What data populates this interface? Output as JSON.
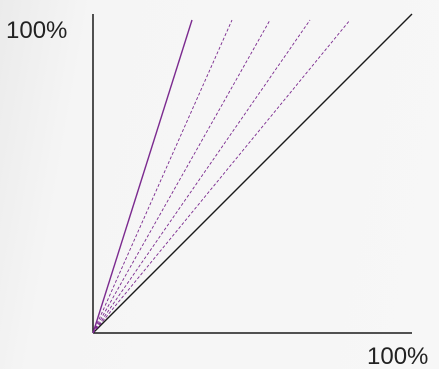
{
  "axes": {
    "y_max_label": "100%",
    "x_max_label": "100%",
    "axis_color": "#1a1a1a"
  },
  "reference_line": {
    "color": "#1a1a1a",
    "style": "solid"
  },
  "fan_lines": {
    "color": "#7b2a8f",
    "count": 5,
    "first_style": "solid",
    "others_style": "dashed"
  }
}
